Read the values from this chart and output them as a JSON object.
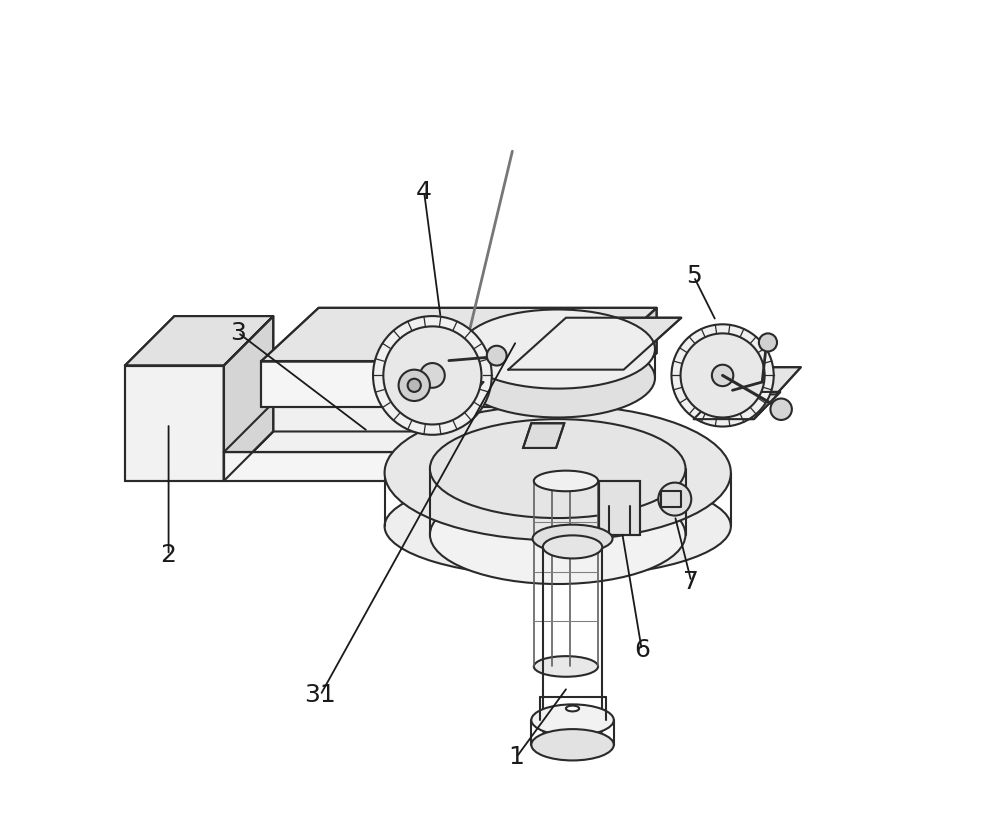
{
  "background_color": "#ffffff",
  "line_color": "#2a2a2a",
  "line_width": 1.5,
  "figure_width": 10.0,
  "figure_height": 8.3,
  "dpi": 100,
  "label_fontsize": 18,
  "label_color": "#1a1a1a"
}
